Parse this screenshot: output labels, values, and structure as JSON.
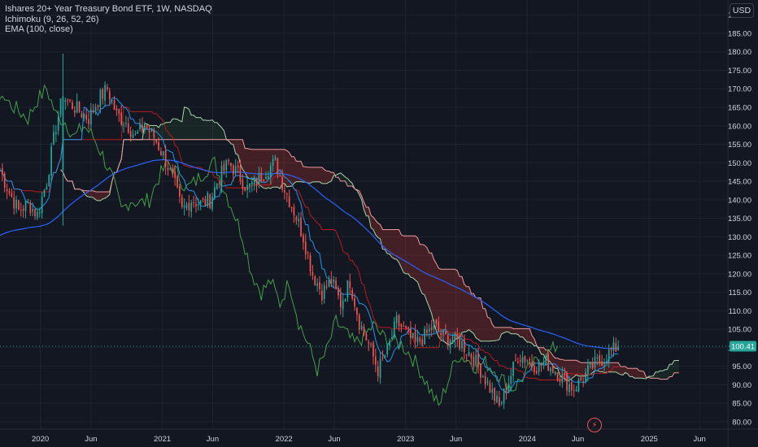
{
  "legend": {
    "title": "Ishares 20+ Year Treasury Bond ETF, 1W, NASDAQ",
    "indicator_1": "Ichimoku (9, 26, 52, 26)",
    "indicator_2": "EMA (100, close)"
  },
  "currency_label": "USD",
  "flash_icon_glyph": "⚡",
  "colors": {
    "background": "#131722",
    "grid": "#1f2330",
    "text": "#d1d4dc",
    "up_candle": "#26a69a",
    "down_candle": "#ef5350",
    "ema": "#2962ff",
    "conversion_line": "#2196f3",
    "base_line": "#b71c1c",
    "lagging_span": "#43a047",
    "span_a": "#a5d6a7",
    "span_b": "#ef9a9a",
    "cloud_bull": "rgba(67,160,71,0.12)",
    "cloud_bear": "rgba(244,67,54,0.22)",
    "last_price_bg": "#26a69a"
  },
  "chart_data": {
    "type": "candlestick",
    "title": "Ishares 20+ Year Treasury Bond ETF, 1W, NASDAQ",
    "indicators": [
      "Ichimoku (9, 26, 52, 26)",
      "EMA (100, close)"
    ],
    "y_ticks": [
      80,
      85,
      90,
      95,
      100,
      105,
      110,
      115,
      120,
      125,
      130,
      135,
      140,
      145,
      150,
      155,
      160,
      165,
      170,
      175,
      180,
      185,
      190
    ],
    "y_tick_labels": [
      "80.00",
      "85.00",
      "90.00",
      "95.00",
      "100.00",
      "105.00",
      "110.00",
      "115.00",
      "120.00",
      "125.00",
      "130.00",
      "135.00",
      "140.00",
      "145.00",
      "150.00",
      "155.00",
      "160.00",
      "165.00",
      "170.00",
      "175.00",
      "180.00",
      "185.00",
      "190.00"
    ],
    "ylim": [
      78,
      194
    ],
    "x_ticks": [
      {
        "label": "2020",
        "date": "2020-01-01"
      },
      {
        "label": "Jun",
        "date": "2020-06-01"
      },
      {
        "label": "2021",
        "date": "2021-01-01"
      },
      {
        "label": "Jun",
        "date": "2021-06-01"
      },
      {
        "label": "2022",
        "date": "2022-01-01"
      },
      {
        "label": "Jun",
        "date": "2022-06-01"
      },
      {
        "label": "2023",
        "date": "2023-01-01"
      },
      {
        "label": "Jun",
        "date": "2023-06-01"
      },
      {
        "label": "2024",
        "date": "2024-01-01"
      },
      {
        "label": "Jun",
        "date": "2024-06-01"
      },
      {
        "label": "2025",
        "date": "2025-01-01"
      },
      {
        "label": "Jun",
        "date": "2025-06-01"
      }
    ],
    "x_range": [
      "2019-09-02",
      "2025-08-25"
    ],
    "last_price": 100.41,
    "last_price_label": "100.41",
    "close_series": {
      "dates": [
        "2019-09-02",
        "2019-09-30",
        "2019-10-28",
        "2019-11-25",
        "2019-12-23",
        "2020-01-20",
        "2020-02-17",
        "2020-03-09",
        "2020-03-30",
        "2020-04-27",
        "2020-05-25",
        "2020-06-22",
        "2020-07-20",
        "2020-08-17",
        "2020-09-14",
        "2020-10-12",
        "2020-11-09",
        "2020-12-07",
        "2021-01-04",
        "2021-02-01",
        "2021-03-01",
        "2021-03-29",
        "2021-04-26",
        "2021-05-24",
        "2021-06-21",
        "2021-07-19",
        "2021-08-16",
        "2021-09-13",
        "2021-10-11",
        "2021-11-08",
        "2021-12-06",
        "2022-01-03",
        "2022-01-31",
        "2022-02-28",
        "2022-03-28",
        "2022-04-25",
        "2022-05-23",
        "2022-06-20",
        "2022-07-18",
        "2022-08-15",
        "2022-09-12",
        "2022-10-10",
        "2022-11-07",
        "2022-12-05",
        "2023-01-02",
        "2023-01-30",
        "2023-02-27",
        "2023-03-27",
        "2023-04-24",
        "2023-05-22",
        "2023-06-19",
        "2023-07-17",
        "2023-08-14",
        "2023-09-11",
        "2023-10-09",
        "2023-11-06",
        "2023-12-04",
        "2024-01-01",
        "2024-01-29",
        "2024-02-26",
        "2024-03-25",
        "2024-04-22",
        "2024-05-20",
        "2024-06-17",
        "2024-07-15",
        "2024-08-12",
        "2024-09-09",
        "2024-09-30"
      ],
      "closes": [
        148,
        142,
        137,
        139,
        136,
        145,
        160,
        168,
        166,
        164,
        162,
        167,
        170,
        163,
        161,
        157,
        160,
        157,
        152,
        146,
        137,
        140,
        139,
        140,
        146,
        150,
        147,
        143,
        145,
        148,
        150,
        143,
        137,
        130,
        120,
        115,
        118,
        112,
        118,
        107,
        101,
        94,
        99,
        107,
        104,
        101,
        103,
        106,
        103,
        102,
        101,
        98,
        94,
        89,
        84,
        91,
        98,
        97,
        95,
        96,
        94,
        91,
        89,
        92,
        95,
        97,
        99,
        100.41
      ]
    },
    "ema_100": {
      "dates": [
        "2019-09-02",
        "2020-03-09",
        "2020-09-14",
        "2021-01-04",
        "2021-06-21",
        "2021-12-06",
        "2022-03-28",
        "2022-06-20",
        "2022-10-10",
        "2023-01-02",
        "2023-05-22",
        "2023-10-09",
        "2024-01-01",
        "2024-05-20",
        "2024-09-30"
      ],
      "values": [
        130,
        137,
        143,
        150,
        151,
        149,
        145,
        139,
        131,
        124,
        117,
        111,
        108,
        104,
        101
      ]
    },
    "ichimoku": {
      "span_a_end": 95.5,
      "span_b_end": 92.5,
      "cloud_projection_end": "2025-03-10"
    }
  }
}
